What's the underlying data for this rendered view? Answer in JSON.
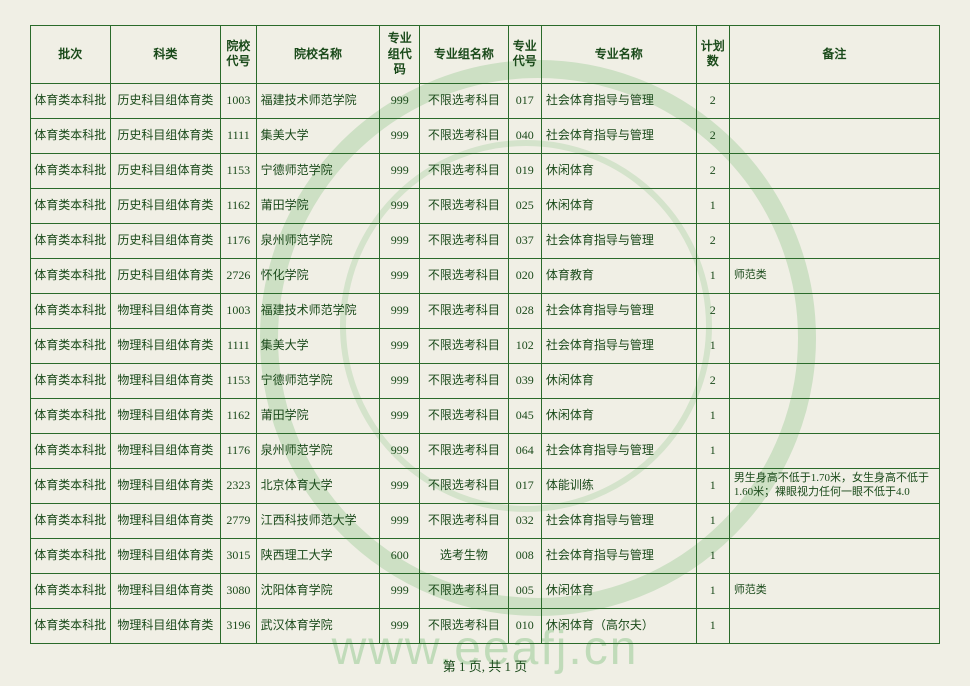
{
  "watermark_url": "www.eeafj.cn",
  "pager": "第 1 页, 共 1 页",
  "columns": [
    "批次",
    "科类",
    "院校代号",
    "院校名称",
    "专业组代码",
    "专业组名称",
    "专业代号",
    "专业名称",
    "计划数",
    "备注"
  ],
  "rows": [
    [
      "体育类本科批",
      "历史科目组体育类",
      "1003",
      "福建技术师范学院",
      "999",
      "不限选考科目",
      "017",
      "社会体育指导与管理",
      "2",
      ""
    ],
    [
      "体育类本科批",
      "历史科目组体育类",
      "1111",
      "集美大学",
      "999",
      "不限选考科目",
      "040",
      "社会体育指导与管理",
      "2",
      ""
    ],
    [
      "体育类本科批",
      "历史科目组体育类",
      "1153",
      "宁德师范学院",
      "999",
      "不限选考科目",
      "019",
      "休闲体育",
      "2",
      ""
    ],
    [
      "体育类本科批",
      "历史科目组体育类",
      "1162",
      "莆田学院",
      "999",
      "不限选考科目",
      "025",
      "休闲体育",
      "1",
      ""
    ],
    [
      "体育类本科批",
      "历史科目组体育类",
      "1176",
      "泉州师范学院",
      "999",
      "不限选考科目",
      "037",
      "社会体育指导与管理",
      "2",
      ""
    ],
    [
      "体育类本科批",
      "历史科目组体育类",
      "2726",
      "怀化学院",
      "999",
      "不限选考科目",
      "020",
      "体育教育",
      "1",
      "师范类"
    ],
    [
      "体育类本科批",
      "物理科目组体育类",
      "1003",
      "福建技术师范学院",
      "999",
      "不限选考科目",
      "028",
      "社会体育指导与管理",
      "2",
      ""
    ],
    [
      "体育类本科批",
      "物理科目组体育类",
      "1111",
      "集美大学",
      "999",
      "不限选考科目",
      "102",
      "社会体育指导与管理",
      "1",
      ""
    ],
    [
      "体育类本科批",
      "物理科目组体育类",
      "1153",
      "宁德师范学院",
      "999",
      "不限选考科目",
      "039",
      "休闲体育",
      "2",
      ""
    ],
    [
      "体育类本科批",
      "物理科目组体育类",
      "1162",
      "莆田学院",
      "999",
      "不限选考科目",
      "045",
      "休闲体育",
      "1",
      ""
    ],
    [
      "体育类本科批",
      "物理科目组体育类",
      "1176",
      "泉州师范学院",
      "999",
      "不限选考科目",
      "064",
      "社会体育指导与管理",
      "1",
      ""
    ],
    [
      "体育类本科批",
      "物理科目组体育类",
      "2323",
      "北京体育大学",
      "999",
      "不限选考科目",
      "017",
      "体能训练",
      "1",
      "男生身高不低于1.70米，女生身高不低于1.60米；裸眼视力任何一眼不低于4.0"
    ],
    [
      "体育类本科批",
      "物理科目组体育类",
      "2779",
      "江西科技师范大学",
      "999",
      "不限选考科目",
      "032",
      "社会体育指导与管理",
      "1",
      ""
    ],
    [
      "体育类本科批",
      "物理科目组体育类",
      "3015",
      "陕西理工大学",
      "600",
      "选考生物",
      "008",
      "社会体育指导与管理",
      "1",
      ""
    ],
    [
      "体育类本科批",
      "物理科目组体育类",
      "3080",
      "沈阳体育学院",
      "999",
      "不限选考科目",
      "005",
      "休闲体育",
      "1",
      "师范类"
    ],
    [
      "体育类本科批",
      "物理科目组体育类",
      "3196",
      "武汉体育学院",
      "999",
      "不限选考科目",
      "010",
      "休闲体育（高尔夫）",
      "1",
      ""
    ]
  ]
}
